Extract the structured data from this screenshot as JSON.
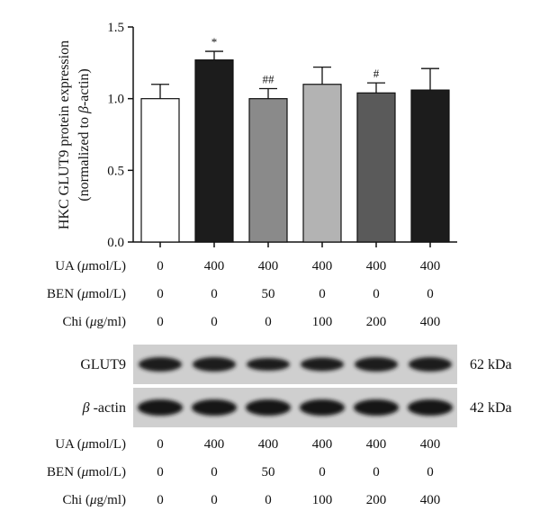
{
  "chart_data": {
    "type": "bar",
    "ylabel_line1": "HKC GLUT9 protein expression",
    "ylabel_line2_prefix": "(normalized to ",
    "ylabel_line2_symbol": "β",
    "ylabel_line2_suffix": "-actin)",
    "ylim": [
      0,
      1.5
    ],
    "yticks": [
      "0.0",
      "0.5",
      "1.0",
      "1.5"
    ],
    "grid": false,
    "values": [
      1.0,
      1.27,
      1.0,
      1.1,
      1.04,
      1.06
    ],
    "errors": [
      0.1,
      0.06,
      0.07,
      0.12,
      0.07,
      0.15
    ],
    "annotations": [
      "",
      "*",
      "##",
      "",
      "#",
      ""
    ],
    "bar_colors": [
      "#ffffff",
      "#1c1c1c",
      "#8a8a8a",
      "#b3b3b3",
      "#5a5a5a",
      "#1c1c1c"
    ],
    "conditions": [
      {
        "prefix": "UA (",
        "mu": "μ",
        "suffix": "mol/L)",
        "values": [
          "0",
          "400",
          "400",
          "400",
          "400",
          "400"
        ]
      },
      {
        "prefix": "BEN (",
        "mu": "μ",
        "suffix": "mol/L)",
        "values": [
          "0",
          "0",
          "50",
          "0",
          "0",
          "0"
        ]
      },
      {
        "prefix": "Chi (",
        "mu": "μ",
        "suffix": "g/ml)",
        "values": [
          "0",
          "0",
          "0",
          "100",
          "200",
          "400"
        ]
      }
    ]
  },
  "blot": {
    "rows": [
      {
        "label_symbol": "",
        "label": "GLUT9",
        "size": "62 kDa"
      },
      {
        "label_symbol": "β",
        "label": " -actin",
        "size": "42 kDa"
      }
    ]
  }
}
